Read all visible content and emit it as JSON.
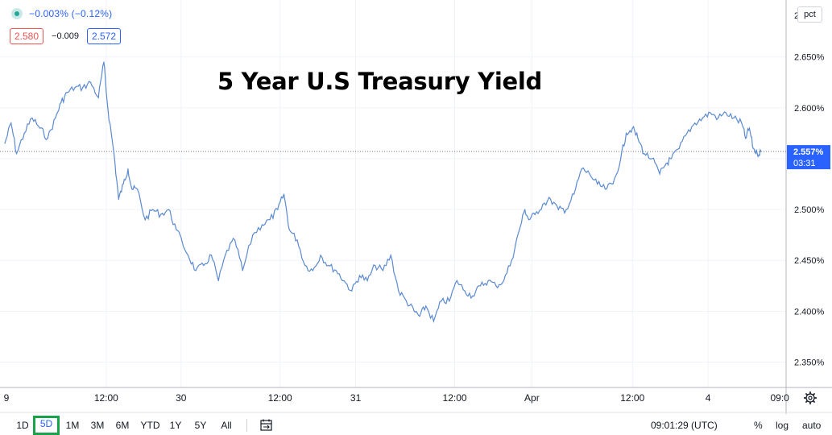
{
  "header": {
    "change_text": "−0.003% (−0.12%)",
    "bid": "2.580",
    "spread": "−0.009",
    "ask": "2.572"
  },
  "scale_mode": "pct",
  "chart_data": {
    "type": "line",
    "title": "5 Year U.S Treasury Yield",
    "ylim": [
      2.325,
      2.706
    ],
    "yticks": [
      "2.650%",
      "2.600%",
      "2.550%",
      "2.500%",
      "2.450%",
      "2.400%",
      "2.350%"
    ],
    "ytick_values": [
      2.65,
      2.6,
      2.55,
      2.5,
      2.45,
      2.4,
      2.35
    ],
    "ytick_top_partial": "2",
    "xticks": [
      "9",
      "12:00",
      "30",
      "12:00",
      "31",
      "12:00",
      "Apr",
      "12:00",
      "4",
      "09:0"
    ],
    "xtick_positions": [
      0.0,
      0.13,
      0.226,
      0.353,
      0.45,
      0.577,
      0.676,
      0.805,
      0.902,
      0.994
    ],
    "current_value": 2.557,
    "current_label": "2.557%",
    "countdown": "03:31",
    "line_color": "#5b8ad0",
    "current_color": "#2962ff",
    "grid": true,
    "series": [
      {
        "x": [
          0.0,
          0.008,
          0.015,
          0.025,
          0.035,
          0.045,
          0.055,
          0.065,
          0.072,
          0.08,
          0.09,
          0.1,
          0.11,
          0.12,
          0.127,
          0.132,
          0.14,
          0.146,
          0.152,
          0.158,
          0.163,
          0.17,
          0.18,
          0.19,
          0.2,
          0.21,
          0.22,
          0.235,
          0.245,
          0.255,
          0.265,
          0.274,
          0.285,
          0.295,
          0.305,
          0.318,
          0.33,
          0.34,
          0.35,
          0.358,
          0.365,
          0.375,
          0.385,
          0.395,
          0.405,
          0.415,
          0.425,
          0.435,
          0.445,
          0.455,
          0.465,
          0.475,
          0.485,
          0.495,
          0.505,
          0.515,
          0.525,
          0.532,
          0.54,
          0.55,
          0.56,
          0.57,
          0.58,
          0.59,
          0.6,
          0.61,
          0.62,
          0.63,
          0.64,
          0.65,
          0.66,
          0.667,
          0.672,
          0.68,
          0.69,
          0.7,
          0.71,
          0.72,
          0.73,
          0.74,
          0.75,
          0.76,
          0.77,
          0.78,
          0.79,
          0.797,
          0.805,
          0.812,
          0.82,
          0.83,
          0.84,
          0.848,
          0.855,
          0.865,
          0.875,
          0.885,
          0.895,
          0.905,
          0.915,
          0.925,
          0.935,
          0.945,
          0.95,
          0.955,
          0.96,
          0.965,
          0.97
        ],
        "y": [
          2.565,
          2.585,
          2.555,
          2.575,
          2.59,
          2.58,
          2.57,
          2.59,
          2.605,
          2.615,
          2.62,
          2.62,
          2.625,
          2.61,
          2.645,
          2.6,
          2.555,
          2.51,
          2.525,
          2.54,
          2.52,
          2.52,
          2.49,
          2.5,
          2.495,
          2.5,
          2.48,
          2.455,
          2.44,
          2.445,
          2.455,
          2.43,
          2.46,
          2.47,
          2.44,
          2.475,
          2.485,
          2.49,
          2.5,
          2.515,
          2.48,
          2.47,
          2.445,
          2.44,
          2.455,
          2.445,
          2.44,
          2.43,
          2.42,
          2.435,
          2.43,
          2.445,
          2.44,
          2.455,
          2.42,
          2.41,
          2.4,
          2.395,
          2.405,
          2.39,
          2.41,
          2.41,
          2.43,
          2.42,
          2.415,
          2.425,
          2.43,
          2.425,
          2.43,
          2.45,
          2.48,
          2.5,
          2.49,
          2.495,
          2.505,
          2.51,
          2.5,
          2.5,
          2.515,
          2.54,
          2.535,
          2.525,
          2.52,
          2.525,
          2.55,
          2.575,
          2.58,
          2.57,
          2.555,
          2.55,
          2.535,
          2.545,
          2.55,
          2.56,
          2.575,
          2.585,
          2.59,
          2.595,
          2.59,
          2.595,
          2.59,
          2.585,
          2.57,
          2.58,
          2.56,
          2.555,
          2.557
        ]
      }
    ]
  },
  "toolbar": {
    "timeframes": [
      "1D",
      "5D",
      "1M",
      "3M",
      "6M",
      "YTD",
      "1Y",
      "5Y",
      "All"
    ],
    "active_timeframe": "5D",
    "clock": "09:01:29 (UTC)",
    "options": [
      "%",
      "log",
      "auto"
    ]
  }
}
